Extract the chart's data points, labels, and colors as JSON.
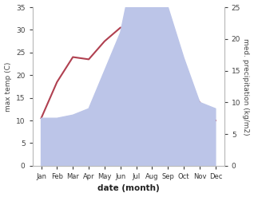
{
  "months": [
    "Jan",
    "Feb",
    "Mar",
    "Apr",
    "May",
    "Jun",
    "Jul",
    "Aug",
    "Sep",
    "Oct",
    "Nov",
    "Dec"
  ],
  "temp": [
    10.5,
    18.5,
    24.0,
    23.5,
    27.5,
    30.5,
    30.5,
    29.5,
    25.5,
    19.0,
    14.0,
    10.0
  ],
  "precip": [
    7.5,
    7.5,
    8.0,
    9.0,
    15.0,
    21.0,
    33.0,
    31.0,
    25.0,
    17.0,
    10.0,
    9.0
  ],
  "temp_color": "#b04050",
  "precip_fill_color": "#bcc5e8",
  "ylabel_left": "max temp (C)",
  "ylabel_right": "med. precipitation (kg/m2)",
  "xlabel": "date (month)",
  "ylim_left": [
    0,
    35
  ],
  "ylim_right": [
    0,
    25
  ],
  "yticks_left": [
    0,
    5,
    10,
    15,
    20,
    25,
    30,
    35
  ],
  "yticks_right": [
    0,
    5,
    10,
    15,
    20,
    25
  ],
  "background_color": "#ffffff"
}
